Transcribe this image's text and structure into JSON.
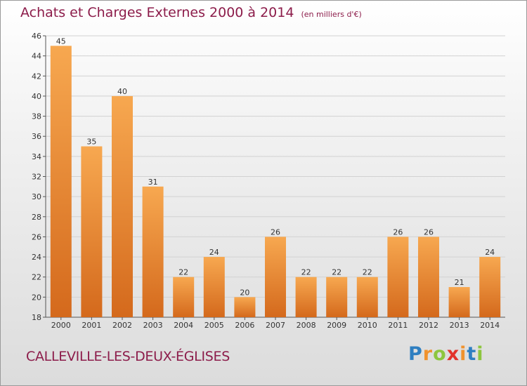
{
  "chart_data": {
    "type": "bar",
    "title": "Achats et Charges Externes 2000 à 2014",
    "subtitle": "(en milliers d'€)",
    "xlabel": "",
    "ylabel": "",
    "categories": [
      "2000",
      "2001",
      "2002",
      "2003",
      "2004",
      "2005",
      "2006",
      "2007",
      "2008",
      "2009",
      "2010",
      "2011",
      "2012",
      "2013",
      "2014"
    ],
    "values": [
      45,
      35,
      40,
      31,
      22,
      24,
      20,
      26,
      22,
      22,
      22,
      26,
      26,
      21,
      24
    ],
    "ylim": [
      18,
      46
    ],
    "yticks": [
      18,
      20,
      22,
      24,
      26,
      28,
      30,
      32,
      34,
      36,
      38,
      40,
      42,
      44,
      46
    ],
    "grid": true,
    "bar_color": "#f0922e",
    "title_color": "#8c1c4a"
  },
  "footer": {
    "commune": "CALLEVILLE-LES-DEUX-ÉGLISES"
  },
  "brand": {
    "letters": [
      "P",
      "r",
      "o",
      "x",
      "i",
      "t",
      "i"
    ],
    "colors": [
      "#2f7fc1",
      "#f0922e",
      "#8dc63f",
      "#e2332b",
      "#f0922e",
      "#2f7fc1",
      "#8dc63f"
    ]
  }
}
